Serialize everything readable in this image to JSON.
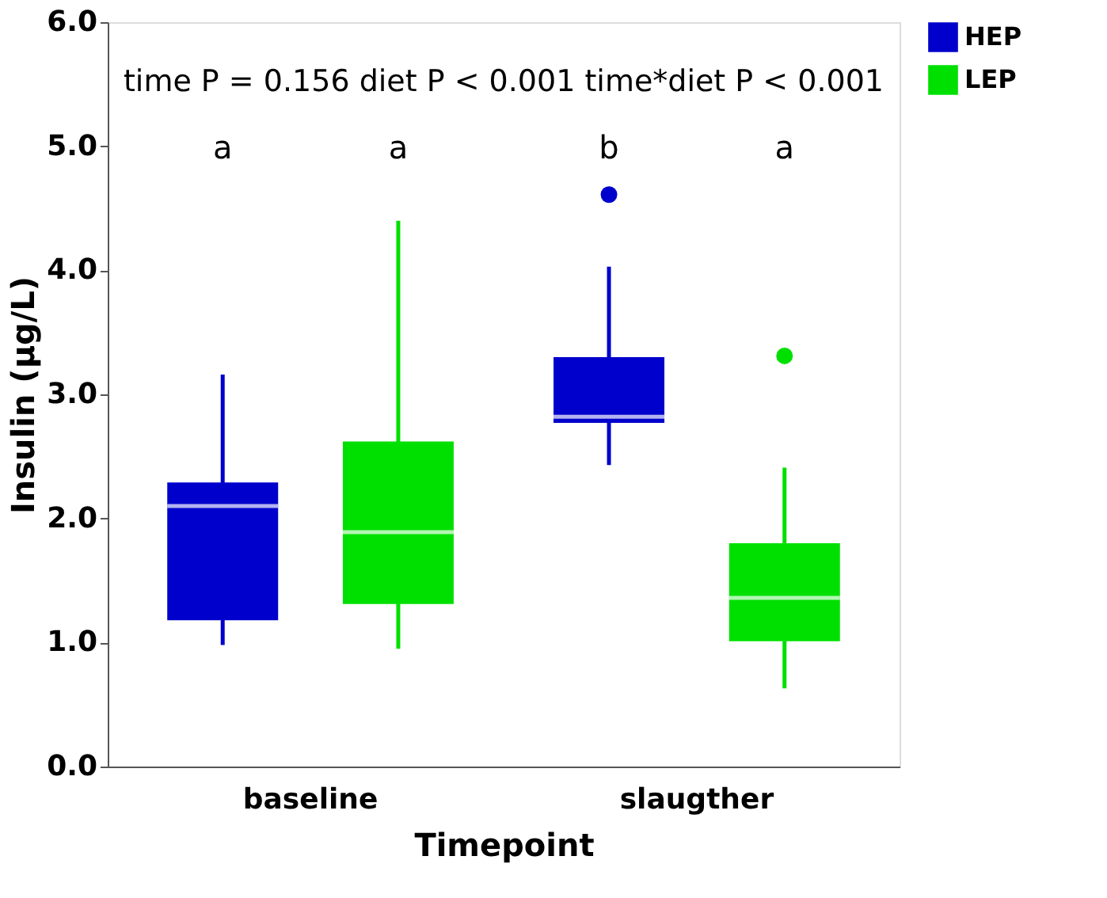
{
  "chart_data": {
    "type": "box",
    "xlabel": "Timepoint",
    "ylabel": "Insulin (µg/L)",
    "categories": [
      "baseline",
      "slaugther"
    ],
    "ylim": [
      0,
      6
    ],
    "yticks": [
      {
        "value": 0,
        "label": "0.0"
      },
      {
        "value": 1,
        "label": "1.0"
      },
      {
        "value": 2,
        "label": "2.0"
      },
      {
        "value": 3,
        "label": "3.0"
      },
      {
        "value": 4,
        "label": "4.0"
      },
      {
        "value": 5,
        "label": "5.0"
      },
      {
        "value": 6,
        "label": "6.0"
      }
    ],
    "series": [
      {
        "name": "HEP",
        "color": "#0000cc",
        "boxes": [
          {
            "low": 0.98,
            "q1": 1.18,
            "median": 2.1,
            "q3": 2.29,
            "high": 3.16
          },
          {
            "low": 2.43,
            "q1": 2.77,
            "median": 2.82,
            "q3": 3.3,
            "high": 4.03,
            "outliers": [
              4.61
            ]
          }
        ]
      },
      {
        "name": "LEP",
        "color": "#00e000",
        "boxes": [
          {
            "low": 0.95,
            "q1": 1.31,
            "median": 1.89,
            "q3": 2.62,
            "high": 4.4
          },
          {
            "low": 0.63,
            "q1": 1.01,
            "median": 1.36,
            "q3": 1.8,
            "high": 2.41,
            "outliers": [
              3.31
            ]
          }
        ]
      }
    ],
    "annotations": [
      "time P = 0.156  diet P < 0.001  time*diet P < 0.001",
      "a",
      "a",
      "b",
      "a"
    ],
    "grid": false,
    "legend": "right"
  }
}
